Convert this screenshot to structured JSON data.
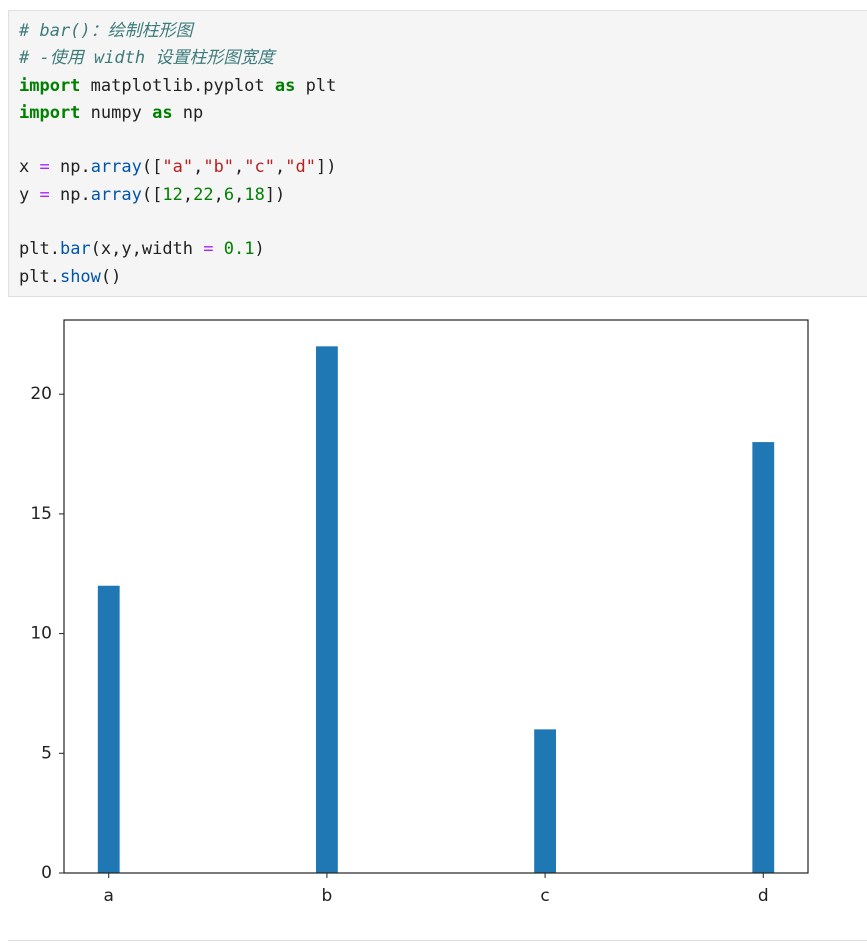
{
  "code": {
    "lines": [
      [
        {
          "text": "# bar()：绘制柱形图",
          "style": "comment"
        }
      ],
      [
        {
          "text": "# -使用 width 设置柱形图宽度",
          "style": "comment"
        }
      ],
      [
        {
          "text": "import",
          "style": "keyword"
        },
        {
          "text": " matplotlib.pyplot ",
          "style": "plain"
        },
        {
          "text": "as",
          "style": "keyword"
        },
        {
          "text": " plt",
          "style": "plain"
        }
      ],
      [
        {
          "text": "import",
          "style": "keyword"
        },
        {
          "text": " numpy ",
          "style": "plain"
        },
        {
          "text": "as",
          "style": "keyword"
        },
        {
          "text": " np",
          "style": "plain"
        }
      ],
      [],
      [
        {
          "text": "x ",
          "style": "plain"
        },
        {
          "text": "=",
          "style": "operator"
        },
        {
          "text": " np.",
          "style": "plain"
        },
        {
          "text": "array",
          "style": "name"
        },
        {
          "text": "([",
          "style": "plain"
        },
        {
          "text": "\"a\"",
          "style": "string"
        },
        {
          "text": ",",
          "style": "plain"
        },
        {
          "text": "\"b\"",
          "style": "string"
        },
        {
          "text": ",",
          "style": "plain"
        },
        {
          "text": "\"c\"",
          "style": "string"
        },
        {
          "text": ",",
          "style": "plain"
        },
        {
          "text": "\"d\"",
          "style": "string"
        },
        {
          "text": "])",
          "style": "plain"
        }
      ],
      [
        {
          "text": "y ",
          "style": "plain"
        },
        {
          "text": "=",
          "style": "operator"
        },
        {
          "text": " np.",
          "style": "plain"
        },
        {
          "text": "array",
          "style": "name"
        },
        {
          "text": "([",
          "style": "plain"
        },
        {
          "text": "12",
          "style": "number"
        },
        {
          "text": ",",
          "style": "plain"
        },
        {
          "text": "22",
          "style": "number"
        },
        {
          "text": ",",
          "style": "plain"
        },
        {
          "text": "6",
          "style": "number"
        },
        {
          "text": ",",
          "style": "plain"
        },
        {
          "text": "18",
          "style": "number"
        },
        {
          "text": "])",
          "style": "plain"
        }
      ],
      [],
      [
        {
          "text": "plt.",
          "style": "plain"
        },
        {
          "text": "bar",
          "style": "name"
        },
        {
          "text": "(x,y,width ",
          "style": "plain"
        },
        {
          "text": "=",
          "style": "operator"
        },
        {
          "text": " ",
          "style": "plain"
        },
        {
          "text": "0.1",
          "style": "number"
        },
        {
          "text": ")",
          "style": "plain"
        }
      ],
      [
        {
          "text": "plt.",
          "style": "plain"
        },
        {
          "text": "show",
          "style": "name"
        },
        {
          "text": "()",
          "style": "plain"
        }
      ]
    ]
  },
  "chart_data": {
    "type": "bar",
    "categories": [
      "a",
      "b",
      "c",
      "d"
    ],
    "values": [
      12,
      22,
      6,
      18
    ],
    "color": "#1f77b4",
    "bar_width": 0.1,
    "ylim": [
      0,
      23.1
    ],
    "yticks": [
      0,
      5,
      10,
      15,
      20
    ],
    "grid": false
  }
}
